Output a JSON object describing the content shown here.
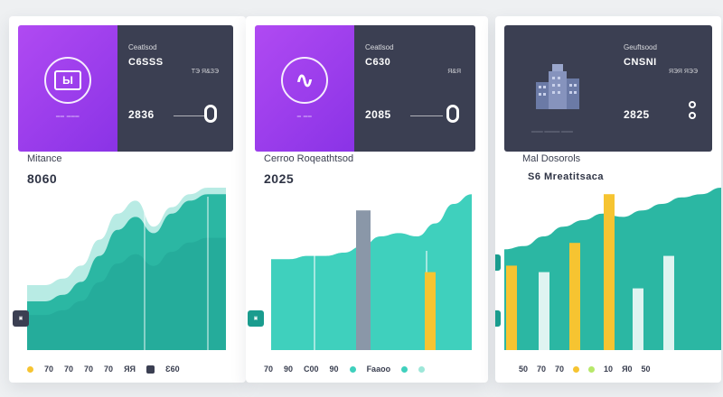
{
  "colors": {
    "teal": "#2bb7a3",
    "teal_light": "#3fd0bd",
    "teal_dark": "#148c84",
    "purple": "#a03cf0",
    "navy": "#3b3f52",
    "yellow": "#f6c431",
    "gray_bar": "#8a97a8"
  },
  "cards": [
    {
      "header": {
        "logo_text": "Ы",
        "logo_caption": "══ ═══",
        "sub": "Ceatlsod",
        "value": "C6SSS",
        "small": "TЭ Я&ЗЭ",
        "big": "2836"
      },
      "metric_label": "Mitance",
      "metric_value": "8060",
      "marker": "▣",
      "legend": [
        "70",
        "70",
        "70",
        "70",
        "ЯЯ",
        "Ɛ60"
      ]
    },
    {
      "header": {
        "logo_text": "∿",
        "logo_caption": "═ ══",
        "sub": "Ceatlsod",
        "value": "C630",
        "small": "Я&Я",
        "big": "2085"
      },
      "metric_label": "Cerroo Roqeathtsod",
      "metric_value": "2025",
      "marker": "▣",
      "legend": [
        "70",
        "90",
        "C00",
        "90",
        "Faaoo"
      ]
    },
    {
      "header": {
        "icon": "building-icon",
        "sub": "Geuftsood",
        "value": "CNSNI",
        "small": "ЯЭЯ ЯЭЭ",
        "big": "2825",
        "caption": "═══ ════ ═══"
      },
      "metric_label": "Mal Dosorols",
      "metric_value": "S6 Mreatitsaca",
      "marker": "▣",
      "legend": [
        "50",
        "70",
        "70",
        "10",
        "Я0",
        "50"
      ]
    }
  ],
  "chart_data": [
    {
      "type": "area",
      "series": [
        {
          "values": [
            30,
            30,
            34,
            42,
            58,
            74,
            82,
            72,
            84,
            92,
            96,
            96
          ]
        }
      ],
      "ylim": [
        0,
        100
      ]
    },
    {
      "type": "bar",
      "bars": [
        {
          "value": 86,
          "kind": "gray"
        },
        {
          "value": 48,
          "kind": "yellow"
        }
      ],
      "area_values": [
        56,
        56,
        58,
        58,
        60,
        64,
        70,
        72,
        70,
        78,
        90,
        96
      ],
      "ylim": [
        0,
        100
      ]
    },
    {
      "type": "bar",
      "bars": [
        {
          "value": 52,
          "kind": "yellow"
        },
        {
          "value": 48,
          "kind": "white"
        },
        {
          "value": 66,
          "kind": "yellow"
        },
        {
          "value": 96,
          "kind": "yellow"
        },
        {
          "value": 38,
          "kind": "white"
        },
        {
          "value": 58,
          "kind": "white"
        }
      ],
      "area_values": [
        62,
        64,
        70,
        76,
        80,
        84,
        82,
        86,
        90,
        94,
        96,
        100
      ],
      "ylim": [
        0,
        100
      ]
    }
  ]
}
